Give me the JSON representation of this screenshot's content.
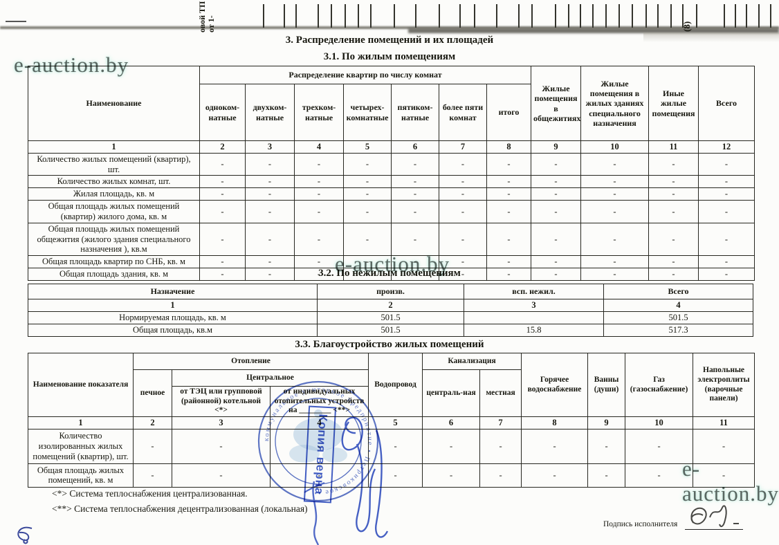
{
  "page": {
    "main_title": "3. Распределение помещений и их площадей",
    "watermark": "e-auction.by",
    "top_remnant": {
      "fragment": "овой ТП от 1-",
      "page_number": "(8)"
    }
  },
  "section31": {
    "title": "3.1. По жилым помещениям",
    "header": {
      "name": "Наименование",
      "group": "Распределение квартир по числу комнат",
      "cols": [
        "одноком-натные",
        "двухком-натные",
        "трехком-натные",
        "четырех-комнатные",
        "пятиком-натные",
        "более пяти комнат",
        "итого"
      ],
      "dorm": "Жилые помещения в общежитиях",
      "special": "Жилые помещения в жилых зданиях специального назначения",
      "other": "Иные жилые помещения",
      "total": "Всего"
    },
    "colnums": [
      "1",
      "2",
      "3",
      "4",
      "5",
      "6",
      "7",
      "8",
      "9",
      "10",
      "11",
      "12"
    ],
    "rows": [
      [
        "Количество жилых помещений (квартир), шт.",
        "-",
        "-",
        "-",
        "-",
        "-",
        "-",
        "-",
        "-",
        "-",
        "-",
        "-"
      ],
      [
        "Количество жилых комнат, шт.",
        "-",
        "-",
        "-",
        "-",
        "-",
        "-",
        "-",
        "-",
        "-",
        "-",
        "-"
      ],
      [
        "Жилая площадь, кв. м",
        "-",
        "-",
        "-",
        "-",
        "-",
        "-",
        "-",
        "-",
        "-",
        "-",
        "-"
      ],
      [
        "Общая площадь жилых помещений  (квартир) жилого дома, кв. м",
        "-",
        "-",
        "-",
        "-",
        "-",
        "-",
        "-",
        "-",
        "-",
        "-",
        "-"
      ],
      [
        "Общая площадь жилых помещений общежития (жилого здания специального назначения ), кв.м",
        "-",
        "-",
        "-",
        "-",
        "-",
        "-",
        "-",
        "-",
        "-",
        "-",
        "-"
      ],
      [
        "Общая площадь квартир по СНБ, кв. м",
        "-",
        "-",
        "-",
        "-",
        "-",
        "-",
        "-",
        "-",
        "-",
        "-",
        "-"
      ],
      [
        "Общая площадь здания, кв. м",
        "-",
        "-",
        "-",
        "-",
        "-",
        "-",
        "-",
        "-",
        "-",
        "-",
        "-"
      ]
    ]
  },
  "section32": {
    "title": "3.2. По нежилым помещениям",
    "header": [
      "Назначение",
      "произв.",
      "всп. нежил.",
      "Всего"
    ],
    "colnums": [
      "1",
      "2",
      "3",
      "4"
    ],
    "rows": [
      [
        "Нормируемая площадь, кв. м",
        "501.5",
        "",
        "501.5"
      ],
      [
        "Общая площадь, кв.м",
        "501.5",
        "15.8",
        "517.3"
      ]
    ]
  },
  "section33": {
    "title": "3.3. Благоустройство жилых помещений",
    "header": {
      "name": "Наименование показателя",
      "heating": "Отопление",
      "stove": "печное",
      "central": "Центральное",
      "from_chp": "от ТЭЦ или групповой (районной) котельной <*>",
      "from_individual": "от индивидуальных отопительных устройств на ________ <**>",
      "water": "Водопровод",
      "sewer": "Канализация",
      "sewer_central": "централь-ная",
      "sewer_local": "местная",
      "hot_water": "Горячее водоснабжение",
      "baths": "Ванны (души)",
      "gas": "Газ (газоснабжение)",
      "stoves": "Напольные электроплиты (варочные панели)"
    },
    "colnums": [
      "1",
      "2",
      "3",
      "4",
      "5",
      "6",
      "7",
      "8",
      "9",
      "10",
      "11"
    ],
    "rows": [
      [
        "Количество изолированных жилых помещений (квартир), шт.",
        "-",
        "-",
        "-",
        "-",
        "-",
        "-",
        "-",
        "-",
        "-",
        "-"
      ],
      [
        "Общая площадь жилых помещений, кв. м",
        "-",
        "-",
        "-",
        "-",
        "-",
        "-",
        "-",
        "-",
        "-",
        "-"
      ]
    ],
    "footnotes": [
      "<*> Система теплоснабжения централизованная.",
      "<**> Система теплоснабжения децентрализованная (локальная)"
    ]
  },
  "signature": {
    "label": "Подпись исполнителя"
  },
  "stamp": {
    "rect_label": "Копия верна",
    "ring_text": "коммунальное унитарное предприятие • Петриковское •"
  },
  "colors": {
    "ink_blue": "#2e4cc0",
    "stamp_blue": "#3c58bb",
    "watermark_glow": "#c2ece2"
  }
}
